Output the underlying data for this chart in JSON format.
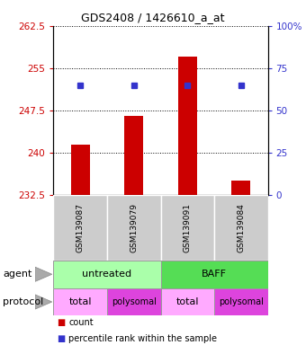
{
  "title": "GDS2408 / 1426610_a_at",
  "samples": [
    "GSM139087",
    "GSM139079",
    "GSM139091",
    "GSM139084"
  ],
  "bar_values": [
    241.5,
    246.5,
    257.0,
    235.0
  ],
  "percentile_values": [
    65.0,
    65.0,
    65.0,
    65.0
  ],
  "ylim_left": [
    232.5,
    262.5
  ],
  "ylim_right": [
    0,
    100
  ],
  "yticks_left": [
    232.5,
    240.0,
    247.5,
    255.0,
    262.5
  ],
  "yticks_right": [
    0,
    25,
    50,
    75,
    100
  ],
  "ytick_labels_left": [
    "232.5",
    "240",
    "247.5",
    "255",
    "262.5"
  ],
  "ytick_labels_right": [
    "0",
    "25",
    "50",
    "75",
    "100%"
  ],
  "bar_color": "#cc0000",
  "marker_color": "#3333cc",
  "agent_labels": [
    "untreated",
    "BAFF"
  ],
  "protocol_labels": [
    "total",
    "polysomal",
    "total",
    "polysomal"
  ],
  "agent_color_untreated": "#aaffaa",
  "agent_color_baff": "#55dd55",
  "protocol_color_light": "#ffaaff",
  "protocol_color_dark": "#dd44dd",
  "sample_area_color": "#cccccc",
  "bar_width": 0.35,
  "title_fontsize": 9,
  "tick_fontsize": 7.5,
  "label_fontsize": 8,
  "sample_fontsize": 6.5,
  "proto_fontsize_total": 8,
  "proto_fontsize_poly": 7
}
